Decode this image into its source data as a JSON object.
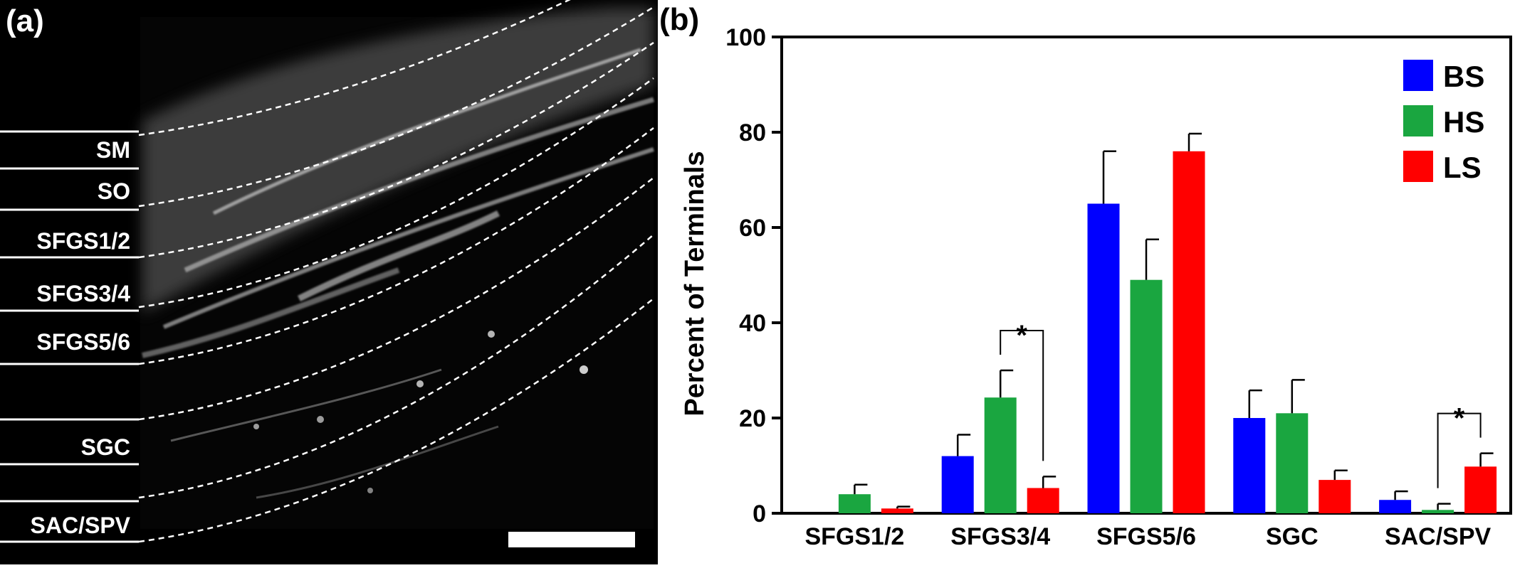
{
  "panel_a": {
    "label": "(a)",
    "layers": [
      "SM",
      "SO",
      "SFGS1/2",
      "SFGS3/4",
      "SFGS5/6",
      "SGC",
      "SAC/SPV"
    ],
    "background_color": "#000000",
    "label_color": "#ffffff"
  },
  "panel_b": {
    "label": "(b)"
  },
  "chart_data": {
    "type": "bar",
    "ylabel": "Percent of Terminals",
    "ylim": [
      0,
      100
    ],
    "yticks": [
      0,
      20,
      40,
      60,
      80,
      100
    ],
    "categories": [
      "SFGS1/2",
      "SFGS3/4",
      "SFGS5/6",
      "SGC",
      "SAC/SPV"
    ],
    "legend_position": "top-right",
    "grid": false,
    "series": [
      {
        "name": "BS",
        "color": "#0000ff",
        "values": [
          0,
          12,
          65,
          20,
          2.8
        ],
        "errors": [
          0,
          4.5,
          11,
          5.8,
          1.8
        ]
      },
      {
        "name": "HS",
        "color": "#1aa640",
        "values": [
          4,
          24.3,
          49,
          21,
          0.7
        ],
        "errors": [
          2,
          5.7,
          8.5,
          7,
          1.3
        ]
      },
      {
        "name": "LS",
        "color": "#ff0000",
        "values": [
          1,
          5.3,
          76,
          7,
          9.8
        ],
        "errors": [
          0.4,
          2.4,
          3.7,
          2,
          2.8
        ]
      }
    ],
    "significance": [
      {
        "category": "SFGS3/4",
        "from_series": "HS",
        "to_series": "LS",
        "label": "*"
      },
      {
        "category": "SAC/SPV",
        "from_series": "HS",
        "to_series": "LS",
        "label": "*"
      }
    ]
  }
}
